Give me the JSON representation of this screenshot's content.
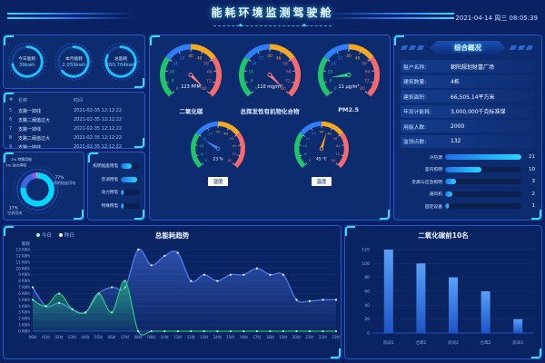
{
  "header": {
    "title": "能耗环境监测驾驶舱",
    "datetime": "2021-04-14 周三 08:05:39"
  },
  "colors": {
    "background": "#0a2264",
    "panel_border": "#2457c9",
    "accent_cyan": "#35e0ff",
    "accent_blue": "#2f7ef7",
    "green": "#1ec66a",
    "orange": "#f6a821",
    "red": "#f8696b"
  },
  "energy_rings": [
    {
      "label": "今日能耗",
      "value": "39kwh",
      "percent": 72
    },
    {
      "label": "本月能耗",
      "value": "2,059kwh",
      "percent": 64
    },
    {
      "label": "总能耗",
      "value": "260,764kwh",
      "percent": 82
    }
  ],
  "alarm_table": {
    "columns": [
      "#",
      "名称",
      "时间"
    ],
    "rows": [
      {
        "index": "5",
        "name": "支路一掉线",
        "time": "2021-02-35 12:12:22"
      },
      {
        "index": "6",
        "name": "支路二阈值过大",
        "time": "2021-02-35 12:12:22"
      },
      {
        "index": "7",
        "name": "支路一掉线",
        "time": "2021-02-35 12:12:22"
      },
      {
        "index": "8",
        "name": "支路二阈值过大",
        "time": "2021-02-35 12:12:22"
      },
      {
        "index": "9",
        "name": "支路一掉线",
        "time": "2021-02-35 12:12:22"
      }
    ]
  },
  "gauges": {
    "scale": {
      "min": 0,
      "max": 80,
      "tick_step": 8,
      "segments": [
        {
          "from": 0,
          "to": 24,
          "color": "#1ec66a"
        },
        {
          "from": 24,
          "to": 40,
          "color": "#2f7ef7"
        },
        {
          "from": 40,
          "to": 56,
          "color": "#f6a821"
        },
        {
          "from": 56,
          "to": 80,
          "color": "#f8696b"
        }
      ]
    },
    "main": [
      {
        "name": "二氧化碳",
        "display": "123 PPM",
        "value": 123,
        "needle_color": "#ff7b7b"
      },
      {
        "name": "总挥发性有机物化合物",
        "display": "110 mg/m³",
        "value": 110,
        "needle_color": "#ff7b7b"
      },
      {
        "name": "PM2.5",
        "display": "11 µg/m³",
        "value": 11,
        "needle_color": "#2adf7c"
      }
    ],
    "small": [
      {
        "name": "湿度",
        "display": "23 %",
        "value": 23,
        "needle_color": "#3f8cff"
      },
      {
        "name": "温度",
        "display": "45 ℃",
        "value": 45,
        "needle_color": "#ffa22e"
      }
    ]
  },
  "overview": {
    "title": "综合概况",
    "rows": [
      {
        "label": "租户名称:",
        "value": "朝阳规划财富广场"
      },
      {
        "label": "建筑数量:",
        "value": "4栋"
      },
      {
        "label": "建筑面积:",
        "value": "66,505.14平方米"
      },
      {
        "label": "年设计能耗:",
        "value": "3,000,000千克标准煤"
      },
      {
        "label": "用能人数:",
        "value": "2000"
      },
      {
        "label": "监测点数:",
        "value": "132"
      }
    ]
  },
  "chart_data": [
    {
      "id": "energy_share_donut",
      "type": "pie",
      "slices": [
        {
          "label": "照明插座用电",
          "percent": 77,
          "color": "#00d8ff"
        },
        {
          "label": "空调用电",
          "percent": 17,
          "color": "#3f68e0"
        },
        {
          "label": "动力用电",
          "percent": 5,
          "color": "#7c5cff"
        },
        {
          "label": "特殊用电",
          "percent": 1,
          "color": "#ffd84d"
        }
      ]
    },
    {
      "id": "energy_share_bars",
      "type": "bar-h",
      "items": [
        {
          "label": "照明插座用电",
          "width_pct": 58
        },
        {
          "label": "空调用电",
          "width_pct": 88
        },
        {
          "label": "动力用电",
          "width_pct": 14
        },
        {
          "label": "特殊用电",
          "width_pct": 14
        }
      ]
    },
    {
      "id": "energy_trend",
      "type": "area-line",
      "title": "总能耗趋势",
      "ylabel": "能耗",
      "y_unit": "KWh",
      "ymin": 0,
      "ymax": 13,
      "ytick_step": 1,
      "grid": true,
      "legend_position": "top-left",
      "x": [
        "00时",
        "01时",
        "02时",
        "03时",
        "04时",
        "05时",
        "06时",
        "07时",
        "08时",
        "09时",
        "10时",
        "11时",
        "12时",
        "13时",
        "14时",
        "15时",
        "16时",
        "17时",
        "18时",
        "19时",
        "20时",
        "21时",
        "22时",
        "23时"
      ],
      "series": [
        {
          "name": "今日",
          "color": "#2adf7c",
          "marker": "#8effc0",
          "values": [
            5,
            4,
            6,
            3.5,
            3,
            6,
            3,
            8,
            0,
            0,
            0,
            0,
            0,
            0,
            0,
            0,
            0,
            0,
            0,
            0,
            0,
            0,
            0,
            0
          ]
        },
        {
          "name": "昨日",
          "color": "#4e7af0",
          "marker": "#ffffff",
          "values": [
            7,
            4,
            4.5,
            3.5,
            3,
            6,
            7,
            7,
            13,
            10.5,
            12,
            12.5,
            8,
            9,
            8,
            9,
            9,
            10,
            9,
            9,
            5,
            4.8,
            5,
            5
          ]
        }
      ]
    },
    {
      "id": "co2_top10",
      "type": "bar",
      "title": "二氧化碳前10名",
      "categories": [
        "房间1",
        "仓库1",
        "房间2",
        "仓库2",
        "房间3"
      ],
      "values": [
        120,
        100,
        80,
        60,
        20
      ],
      "ylim": [
        0,
        120
      ],
      "ytick_step": 20,
      "bar_color_top": "#5aa0f8",
      "bar_color_bottom": "#1c55c8"
    },
    {
      "id": "device_ranking",
      "type": "bar-h",
      "max": 21,
      "items": [
        {
          "label": "冷热源",
          "value": 21
        },
        {
          "label": "室内照明",
          "value": 10
        },
        {
          "label": "走廊与应急照明",
          "value": 3
        },
        {
          "label": "通风机",
          "value": 2
        },
        {
          "label": "固定设备",
          "value": 1
        }
      ]
    }
  ]
}
